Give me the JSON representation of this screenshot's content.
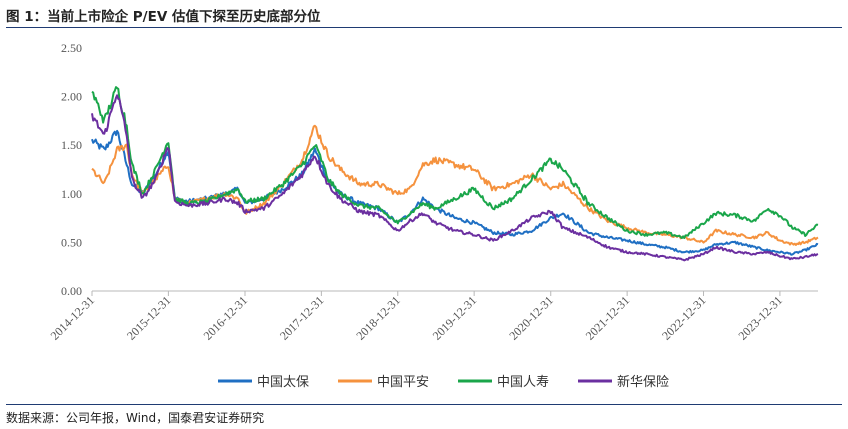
{
  "figure": {
    "title": "图 1：当前上市险企 P/EV 估值下探至历史底部分位",
    "source": "数据来源：公司年报，Wind，国泰君安证券研究"
  },
  "chart_data": {
    "type": "line",
    "title": "",
    "xlabel": "",
    "ylabel": "",
    "ylim": [
      0,
      2.5
    ],
    "y_ticks": [
      "0.00",
      "0.50",
      "1.00",
      "1.50",
      "2.00",
      "2.50"
    ],
    "x_ticks": [
      "2014-12-31",
      "2015-12-31",
      "2016-12-31",
      "2017-12-31",
      "2018-12-31",
      "2019-12-31",
      "2020-12-31",
      "2021-12-31",
      "2022-12-31",
      "2023-12-31"
    ],
    "x_range": [
      "2014-12-31",
      "2024-06-30"
    ],
    "grid": false,
    "legend_position": "bottom",
    "x": [
      "2014-12-31",
      "2015-02-28",
      "2015-04-30",
      "2015-06-15",
      "2015-07-10",
      "2015-08-31",
      "2015-10-31",
      "2015-12-31",
      "2016-01-31",
      "2016-03-31",
      "2016-06-30",
      "2016-09-30",
      "2016-11-30",
      "2016-12-31",
      "2017-03-31",
      "2017-06-30",
      "2017-09-30",
      "2017-11-30",
      "2017-12-31",
      "2018-01-31",
      "2018-03-31",
      "2018-06-30",
      "2018-09-30",
      "2018-12-31",
      "2019-02-28",
      "2019-04-30",
      "2019-06-30",
      "2019-09-30",
      "2019-12-31",
      "2020-03-31",
      "2020-06-30",
      "2020-09-30",
      "2020-12-31",
      "2021-02-28",
      "2021-06-30",
      "2021-09-30",
      "2021-12-31",
      "2022-03-31",
      "2022-06-30",
      "2022-09-30",
      "2022-12-31",
      "2023-02-28",
      "2023-05-31",
      "2023-08-31",
      "2023-10-31",
      "2023-12-31",
      "2024-02-29",
      "2024-04-30",
      "2024-06-30"
    ],
    "series": [
      {
        "name": "中国太保",
        "color": "#1f6fc3",
        "values": [
          1.55,
          1.45,
          1.65,
          1.3,
          1.1,
          1.0,
          1.2,
          1.45,
          0.95,
          0.92,
          0.95,
          1.0,
          1.05,
          0.9,
          0.95,
          1.05,
          1.2,
          1.45,
          1.3,
          1.15,
          1.0,
          0.9,
          0.85,
          0.7,
          0.8,
          0.95,
          0.85,
          0.75,
          0.7,
          0.6,
          0.58,
          0.62,
          0.75,
          0.8,
          0.6,
          0.55,
          0.52,
          0.48,
          0.45,
          0.4,
          0.42,
          0.48,
          0.5,
          0.45,
          0.42,
          0.4,
          0.38,
          0.42,
          0.48
        ]
      },
      {
        "name": "中国平安",
        "color": "#f5923e",
        "values": [
          1.25,
          1.1,
          1.45,
          1.5,
          1.2,
          1.0,
          1.15,
          1.3,
          0.95,
          0.9,
          0.95,
          1.0,
          0.95,
          0.8,
          0.9,
          1.1,
          1.35,
          1.7,
          1.55,
          1.4,
          1.25,
          1.1,
          1.1,
          1.0,
          1.05,
          1.3,
          1.35,
          1.3,
          1.25,
          1.05,
          1.1,
          1.2,
          1.05,
          1.1,
          0.85,
          0.72,
          0.65,
          0.6,
          0.58,
          0.55,
          0.5,
          0.62,
          0.58,
          0.55,
          0.6,
          0.52,
          0.48,
          0.5,
          0.55
        ]
      },
      {
        "name": "中国人寿",
        "color": "#1aa64a",
        "values": [
          2.05,
          1.75,
          2.1,
          1.7,
          1.3,
          1.0,
          1.25,
          1.55,
          0.95,
          0.9,
          0.92,
          1.0,
          1.05,
          0.92,
          0.95,
          1.1,
          1.3,
          1.5,
          1.35,
          1.15,
          1.0,
          0.88,
          0.85,
          0.7,
          0.8,
          0.9,
          0.85,
          0.95,
          1.05,
          0.85,
          0.95,
          1.15,
          1.35,
          1.25,
          0.9,
          0.75,
          0.62,
          0.58,
          0.6,
          0.55,
          0.7,
          0.8,
          0.78,
          0.72,
          0.85,
          0.78,
          0.65,
          0.58,
          0.68
        ]
      },
      {
        "name": "新华保险",
        "color": "#6b2fa0",
        "values": [
          1.8,
          1.6,
          2.05,
          1.6,
          1.15,
          0.95,
          1.15,
          1.5,
          0.92,
          0.88,
          0.9,
          0.95,
          0.9,
          0.82,
          0.85,
          1.0,
          1.2,
          1.4,
          1.25,
          1.1,
          0.95,
          0.82,
          0.78,
          0.62,
          0.72,
          0.8,
          0.7,
          0.62,
          0.58,
          0.52,
          0.62,
          0.75,
          0.82,
          0.65,
          0.55,
          0.45,
          0.4,
          0.38,
          0.35,
          0.32,
          0.38,
          0.45,
          0.4,
          0.38,
          0.4,
          0.36,
          0.33,
          0.35,
          0.38
        ]
      }
    ]
  }
}
